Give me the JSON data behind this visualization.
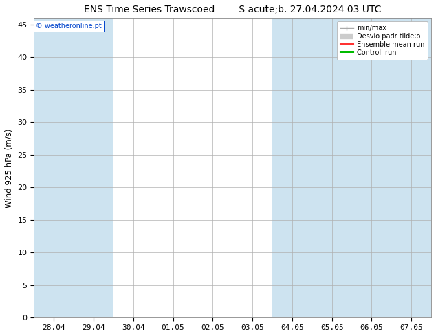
{
  "title_left": "ENS Time Series Trawscoed",
  "title_right": "S acute;b. 27.04.2024 03 UTC",
  "ylabel": "Wind 925 hPa (m/s)",
  "watermark": "© weatheronline.pt",
  "ylim": [
    0,
    46
  ],
  "yticks": [
    0,
    5,
    10,
    15,
    20,
    25,
    30,
    35,
    40,
    45
  ],
  "x_labels": [
    "28.04",
    "29.04",
    "30.04",
    "01.05",
    "02.05",
    "03.05",
    "04.05",
    "05.05",
    "06.05",
    "07.05"
  ],
  "shaded_columns": [
    0,
    1,
    6,
    7,
    8,
    9
  ],
  "shade_color": "#cde3f0",
  "background_color": "#ffffff",
  "grid_color": "#b0b0b0",
  "legend_entries": [
    "min/max",
    "Desvio padr tilde;o",
    "Ensemble mean run",
    "Controll run"
  ],
  "legend_colors_line": [
    "#999999",
    "#bbbbbb",
    "#ff0000",
    "#00bb00"
  ],
  "title_fontsize": 10,
  "axis_fontsize": 8.5,
  "tick_fontsize": 8
}
